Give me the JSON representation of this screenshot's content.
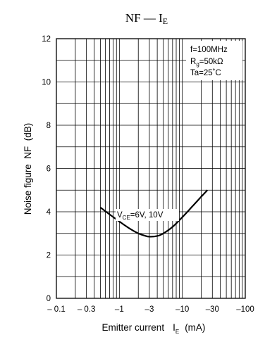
{
  "chart_data": {
    "type": "line",
    "title": {
      "main": "NF",
      "dash": "—",
      "var": "I",
      "sub": "E"
    },
    "xlabel": {
      "text": "Emitter current",
      "var": "I",
      "sub": "E",
      "unit": "(mA)"
    },
    "ylabel": "Noise figure  NF  (dB)",
    "x_scale": "log",
    "x_magnitude_range": [
      0.1,
      100
    ],
    "xticks": [
      {
        "value": 0.1,
        "label": "– 0.1"
      },
      {
        "value": 0.3,
        "label": "– 0.3"
      },
      {
        "value": 1,
        "label": "–1"
      },
      {
        "value": 3,
        "label": "–3"
      },
      {
        "value": 10,
        "label": "–10"
      },
      {
        "value": 30,
        "label": "–30"
      },
      {
        "value": 100,
        "label": "–100"
      }
    ],
    "ylim": [
      0,
      12
    ],
    "yticks": [
      {
        "value": 0,
        "label": "0"
      },
      {
        "value": 2,
        "label": "2"
      },
      {
        "value": 4,
        "label": "4"
      },
      {
        "value": 6,
        "label": "6"
      },
      {
        "value": 8,
        "label": "8"
      },
      {
        "value": 10,
        "label": "10"
      },
      {
        "value": 12,
        "label": "12"
      }
    ],
    "grid": true,
    "conditions": {
      "line1": "f=100MHz",
      "line2": {
        "var": "R",
        "sub": "g",
        "rest": "=50kΩ"
      },
      "line3": "Ta=25˚C"
    },
    "series": [
      {
        "name": {
          "var": "V",
          "sub": "CE",
          "rest": "=6V, 10V"
        },
        "x": [
          -0.5,
          -0.7,
          -1,
          -1.5,
          -2,
          -2.5,
          -3,
          -4,
          -5,
          -7,
          -10,
          -15,
          -20,
          -25
        ],
        "y": [
          4.2,
          3.88,
          3.55,
          3.2,
          3.0,
          2.9,
          2.85,
          2.88,
          3.0,
          3.3,
          3.75,
          4.3,
          4.7,
          5.0
        ]
      }
    ]
  }
}
